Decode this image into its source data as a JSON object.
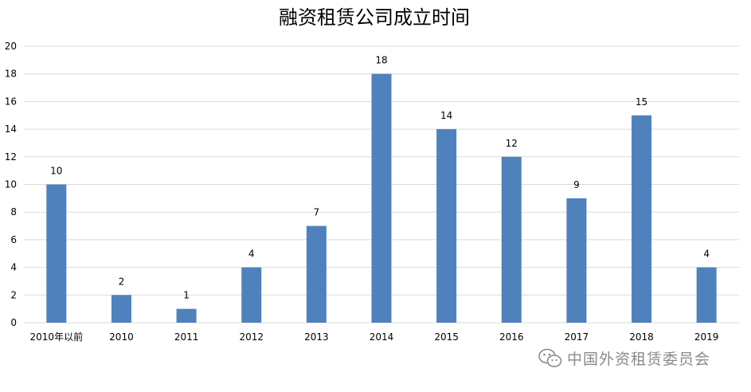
{
  "chart_data": {
    "type": "bar",
    "title": "融资租赁公司成立时间",
    "xlabel": "",
    "ylabel": "",
    "categories": [
      "2010年以前",
      "2010",
      "2011",
      "2012",
      "2013",
      "2014",
      "2015",
      "2016",
      "2017",
      "2018",
      "2019"
    ],
    "values": [
      10,
      2,
      1,
      4,
      7,
      18,
      14,
      12,
      9,
      15,
      4
    ],
    "ylim": [
      0,
      20
    ],
    "yticks": [
      0,
      2,
      4,
      6,
      8,
      10,
      12,
      14,
      16,
      18,
      20
    ],
    "grid": true,
    "legend": "none",
    "bar_color": "#4f81bd",
    "grid_color": "#d9d9d9",
    "text_color": "#000000"
  },
  "watermark": {
    "icon": "wechat-icon",
    "text": "中国外资租赁委员会"
  }
}
